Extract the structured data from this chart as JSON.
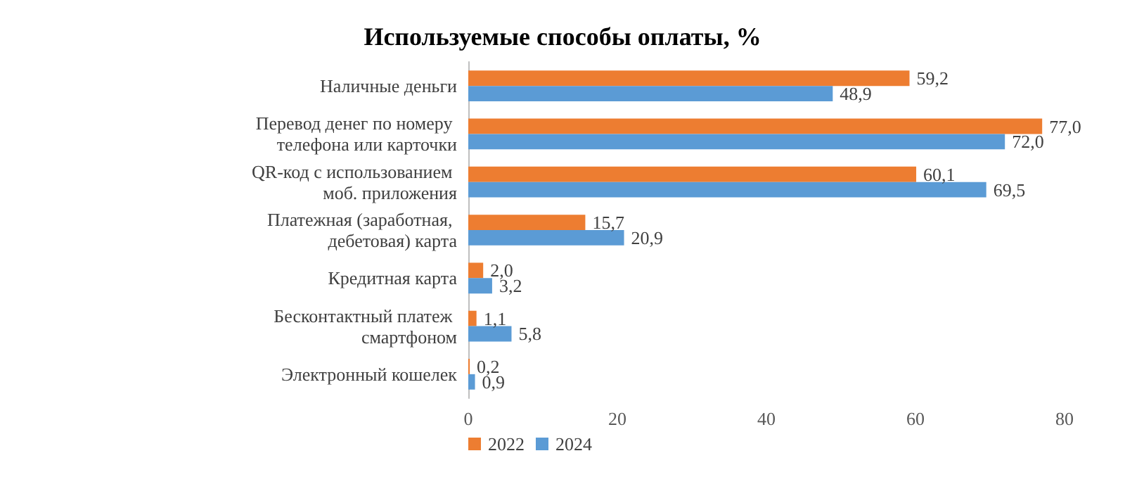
{
  "chart_data": {
    "type": "bar",
    "orientation": "horizontal",
    "title": "Используемые способы оплаты, %",
    "categories": [
      "Наличные деньги",
      "Перевод денег по номеру телефона или карточки",
      "QR-код с использованием моб. приложения",
      "Платежная (заработная, дебетовая) карта",
      "Кредитная карта",
      "Бесконтактный платеж смартфоном",
      "Электронный кошелек"
    ],
    "series": [
      {
        "name": "2022",
        "color": "#ed7d31",
        "values": [
          59.2,
          77.0,
          60.1,
          15.7,
          2.0,
          1.1,
          0.2
        ],
        "value_labels": [
          "59,2",
          "77,0",
          "60,1",
          "15,7",
          "2,0",
          "1,1",
          "0,2"
        ]
      },
      {
        "name": "2024",
        "color": "#5b9bd5",
        "values": [
          48.9,
          72.0,
          69.5,
          20.9,
          3.2,
          5.8,
          0.9
        ],
        "value_labels": [
          "48,9",
          "72,0",
          "69,5",
          "20,9",
          "3,2",
          "5,8",
          "0,9"
        ]
      }
    ],
    "xlim": [
      0,
      80
    ],
    "xticks": [
      0,
      20,
      40,
      60,
      80
    ],
    "grid": false,
    "legend": "bottom"
  }
}
